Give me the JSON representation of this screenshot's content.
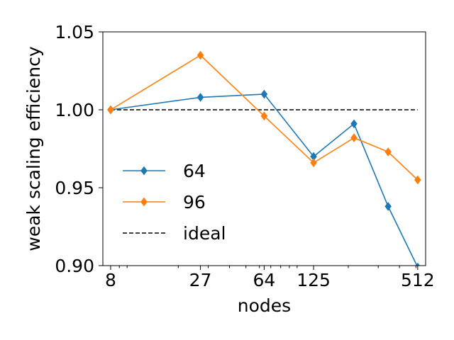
{
  "chart_data": {
    "type": "line",
    "xscale": "log",
    "xlabel": "nodes",
    "ylabel": "weak scaling efficiency",
    "xlim": [
      7.2,
      570
    ],
    "ylim": [
      0.9,
      1.05
    ],
    "xticks": [
      {
        "value": 8,
        "label": "8"
      },
      {
        "value": 27,
        "label": "27"
      },
      {
        "value": 64,
        "label": "64"
      },
      {
        "value": 125,
        "label": "125"
      },
      {
        "value": 512,
        "label": "512"
      }
    ],
    "yticks": [
      {
        "value": 0.9,
        "label": "0.90"
      },
      {
        "value": 0.95,
        "label": "0.95"
      },
      {
        "value": 1.0,
        "label": "1.00"
      },
      {
        "value": 1.05,
        "label": "1.05"
      }
    ],
    "minor_xticks": [
      9,
      10,
      20,
      30,
      40,
      50,
      60,
      70,
      80,
      90,
      100,
      200,
      300,
      400,
      500
    ],
    "grid": false,
    "legend_position": "center-left",
    "series": [
      {
        "name": "64",
        "color": "#1f77b4",
        "marker": "diamond",
        "x": [
          8,
          27,
          64,
          125,
          216,
          343,
          512
        ],
        "y": [
          1.0,
          1.008,
          1.01,
          0.97,
          0.991,
          0.938,
          0.899
        ]
      },
      {
        "name": "96",
        "color": "#ff7f0e",
        "marker": "diamond",
        "x": [
          8,
          27,
          64,
          125,
          216,
          343,
          512
        ],
        "y": [
          1.0,
          1.035,
          0.996,
          0.966,
          0.982,
          0.973,
          0.955
        ]
      }
    ],
    "reference_line": {
      "name": "ideal",
      "color": "#000000",
      "style": "dashed",
      "y": 1.0,
      "x_from": 8,
      "x_to": 512
    }
  }
}
